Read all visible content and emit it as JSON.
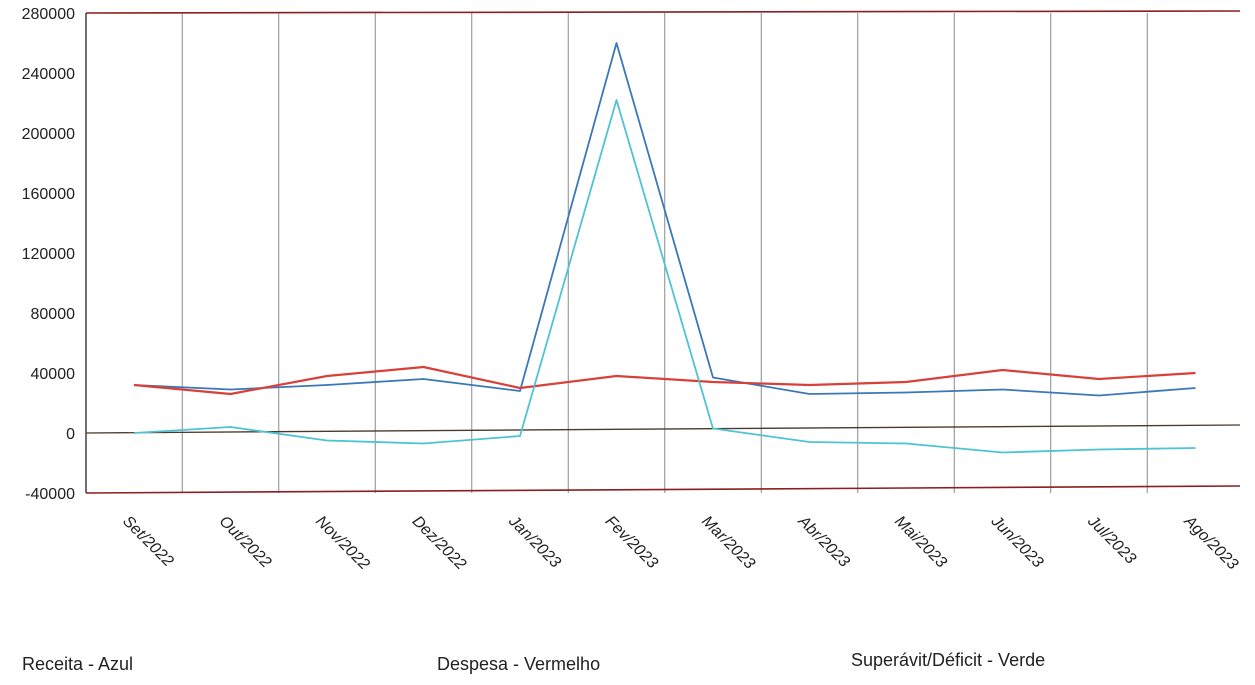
{
  "chart_data": {
    "type": "line",
    "categories": [
      "Set/2022",
      "Out/2022",
      "Nov/2022",
      "Dez/2022",
      "Jan/2023",
      "Fev/2023",
      "Mar/2023",
      "Abr/2023",
      "Mai/2023",
      "Jun/2023",
      "Jul/2023",
      "Ago/2023"
    ],
    "series": [
      {
        "name": "Receita - Azul",
        "color": "#3a78b8",
        "values": [
          32000,
          29000,
          32000,
          36000,
          28000,
          260000,
          37000,
          26000,
          27000,
          29000,
          25000,
          30000
        ]
      },
      {
        "name": "Despesa - Vermelho",
        "color": "#d8403a",
        "values": [
          32000,
          26000,
          38000,
          44000,
          30000,
          38000,
          34000,
          32000,
          34000,
          42000,
          36000,
          40000
        ]
      },
      {
        "name": "Superávit/Déficit - Verde",
        "color": "#4fc3d2",
        "values": [
          0,
          4000,
          -5000,
          -7000,
          -2000,
          222000,
          3000,
          -6000,
          -7000,
          -13000,
          -11000,
          -10000
        ]
      }
    ],
    "ylim": [
      -40000,
      280000
    ],
    "yticks": [
      "280000",
      "240000",
      "200000",
      "160000",
      "120000",
      "80000",
      "40000",
      "0",
      "-40000"
    ],
    "grid": "vertical"
  },
  "legend": {
    "receita": "Receita - Azul",
    "despesa": "Despesa - Vermelho",
    "saldo": "Superávit/Déficit - Verde"
  }
}
